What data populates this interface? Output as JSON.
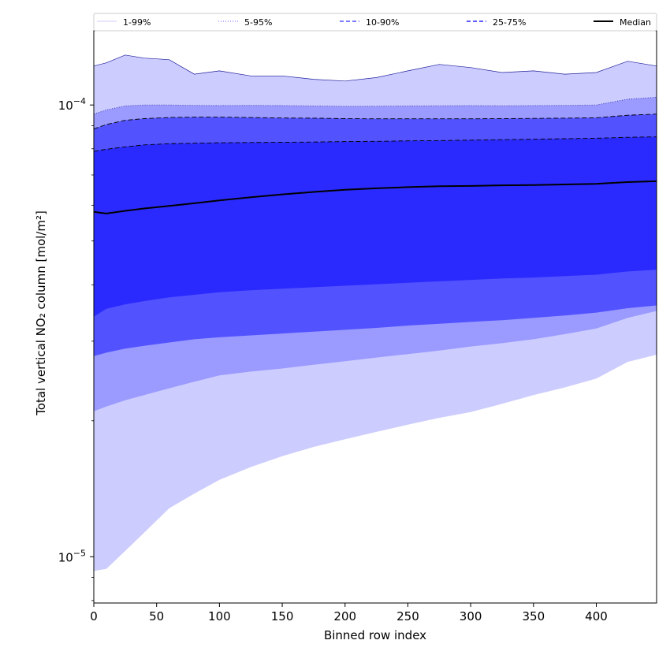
{
  "chart_data": {
    "type": "area",
    "xlabel": "Binned row index",
    "ylabel": "Total vertical NO₂ column [mol/m²]",
    "yscale": "log",
    "xlim": [
      0,
      448
    ],
    "ylim": [
      7.9e-06,
      0.000146
    ],
    "x_ticks": [
      0,
      50,
      100,
      150,
      200,
      250,
      300,
      350,
      400
    ],
    "y_ticks": [
      {
        "value": 1e-05,
        "base": "10",
        "exp": "−5"
      },
      {
        "value": 0.0001,
        "base": "10",
        "exp": "−4"
      }
    ],
    "grid": false,
    "legend_position": "top",
    "x": [
      0,
      10,
      25,
      40,
      60,
      80,
      100,
      125,
      150,
      175,
      200,
      225,
      250,
      275,
      300,
      325,
      350,
      375,
      400,
      425,
      448
    ],
    "bands": [
      {
        "name": "1-99%",
        "color": "#ccccff",
        "lower": [
          9.3e-06,
          9.4e-06,
          1.03e-05,
          1.13e-05,
          1.28e-05,
          1.38e-05,
          1.48e-05,
          1.58e-05,
          1.67e-05,
          1.75e-05,
          1.82e-05,
          1.89e-05,
          1.96e-05,
          2.03e-05,
          2.09e-05,
          2.18e-05,
          2.28e-05,
          2.37e-05,
          2.48e-05,
          2.7e-05,
          2.8e-05
        ],
        "upper": [
          0.000122,
          0.000124,
          0.000129,
          0.000127,
          0.000126,
          0.000117,
          0.000119,
          0.000116,
          0.000116,
          0.000114,
          0.000113,
          0.000115,
          0.000119,
          0.000123,
          0.000121,
          0.000118,
          0.000119,
          0.000117,
          0.000118,
          0.000125,
          0.000122
        ]
      },
      {
        "name": "5-95%",
        "color": "#9a9aff",
        "lower": [
          2.1e-05,
          2.15e-05,
          2.22e-05,
          2.28e-05,
          2.36e-05,
          2.44e-05,
          2.52e-05,
          2.57e-05,
          2.61e-05,
          2.66e-05,
          2.71e-05,
          2.76e-05,
          2.81e-05,
          2.86e-05,
          2.92e-05,
          2.97e-05,
          3.03e-05,
          3.11e-05,
          3.2e-05,
          3.38e-05,
          3.5e-05
        ],
        "upper": [
          9.55e-05,
          9.75e-05,
          9.95e-05,
          0.0001,
          0.0001,
          9.98e-05,
          9.97e-05,
          9.98e-05,
          9.97e-05,
          9.95e-05,
          9.93e-05,
          9.94e-05,
          9.95e-05,
          9.96e-05,
          9.97e-05,
          9.96e-05,
          9.97e-05,
          9.98e-05,
          0.0001,
          0.000103,
          0.000104
        ]
      },
      {
        "name": "10-90%",
        "color": "#5252ff",
        "lower": [
          2.78e-05,
          2.83e-05,
          2.89e-05,
          2.93e-05,
          2.98e-05,
          3.03e-05,
          3.06e-05,
          3.09e-05,
          3.12e-05,
          3.15e-05,
          3.18e-05,
          3.21e-05,
          3.25e-05,
          3.28e-05,
          3.31e-05,
          3.34e-05,
          3.38e-05,
          3.42e-05,
          3.47e-05,
          3.55e-05,
          3.6e-05
        ],
        "upper": [
          8.85e-05,
          9.05e-05,
          9.25e-05,
          9.33e-05,
          9.38e-05,
          9.4e-05,
          9.4e-05,
          9.38e-05,
          9.36e-05,
          9.35e-05,
          9.33e-05,
          9.32e-05,
          9.32e-05,
          9.32e-05,
          9.32e-05,
          9.33e-05,
          9.34e-05,
          9.35e-05,
          9.37e-05,
          9.49e-05,
          9.55e-05
        ]
      },
      {
        "name": "25-75%",
        "color": "#2a2aff",
        "lower": [
          3.4e-05,
          3.54e-05,
          3.62e-05,
          3.68e-05,
          3.75e-05,
          3.8e-05,
          3.85e-05,
          3.89e-05,
          3.92e-05,
          3.95e-05,
          3.98e-05,
          4.01e-05,
          4.04e-05,
          4.07e-05,
          4.1e-05,
          4.13e-05,
          4.15e-05,
          4.18e-05,
          4.21e-05,
          4.28e-05,
          4.32e-05
        ],
        "upper": [
          7.9e-05,
          7.98e-05,
          8.08e-05,
          8.16e-05,
          8.21e-05,
          8.23e-05,
          8.25e-05,
          8.26e-05,
          8.27e-05,
          8.28e-05,
          8.3e-05,
          8.31e-05,
          8.33e-05,
          8.34e-05,
          8.36e-05,
          8.38e-05,
          8.4e-05,
          8.42e-05,
          8.44e-05,
          8.48e-05,
          8.5e-05
        ]
      }
    ],
    "median": {
      "name": "Median",
      "color": "#000000",
      "values": [
        5.8e-05,
        5.75e-05,
        5.83e-05,
        5.9e-05,
        5.98e-05,
        6.06e-05,
        6.15e-05,
        6.25e-05,
        6.34e-05,
        6.42e-05,
        6.49e-05,
        6.54e-05,
        6.58e-05,
        6.61e-05,
        6.62e-05,
        6.64e-05,
        6.65e-05,
        6.67e-05,
        6.69e-05,
        6.75e-05,
        6.78e-05
      ]
    },
    "legend": [
      {
        "label": "1-99%",
        "color": "#ccccff",
        "style": "solid"
      },
      {
        "label": "5-95%",
        "color": "#9a9aff",
        "style": "dotted"
      },
      {
        "label": "10-90%",
        "color": "#5252ff",
        "style": "dashed"
      },
      {
        "label": "25-75%",
        "color": "#2a2aff",
        "style": "dashed"
      },
      {
        "label": "Median",
        "color": "#000000",
        "style": "solid"
      }
    ]
  }
}
